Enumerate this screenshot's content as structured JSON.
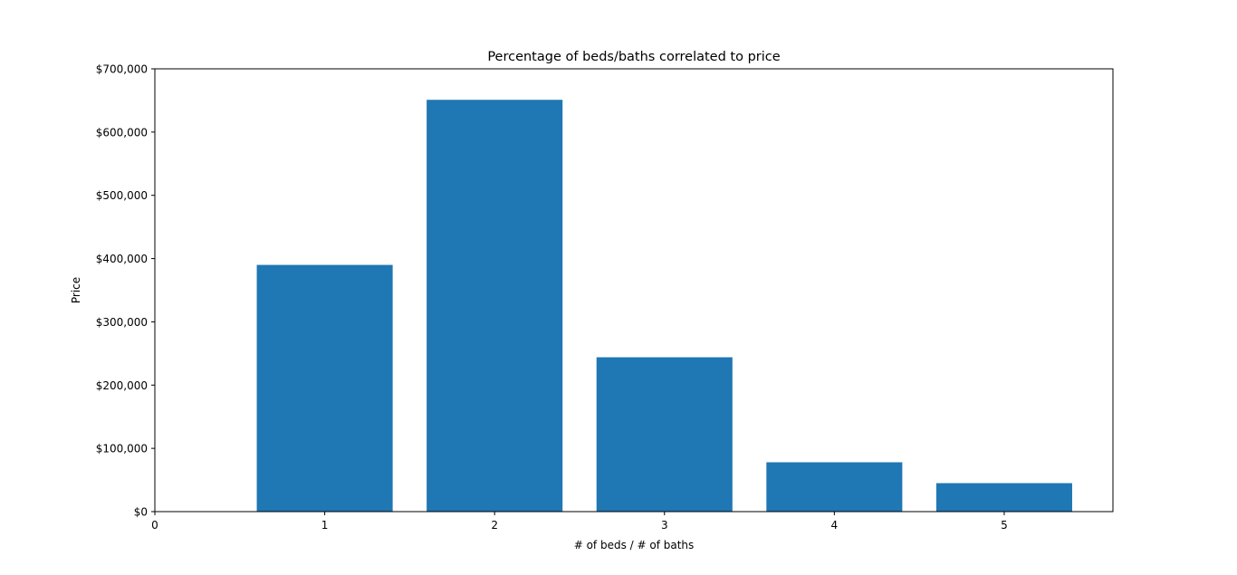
{
  "chart_data": {
    "type": "bar",
    "title": "Percentage of beds/baths correlated to price",
    "xlabel": "# of beds / # of baths",
    "ylabel": "Price",
    "categories": [
      1,
      2,
      3,
      4,
      5
    ],
    "values": [
      390000,
      651000,
      244000,
      78000,
      45000
    ],
    "xlim": [
      0,
      5.64
    ],
    "ylim": [
      0,
      700000
    ],
    "x_ticks": [
      0,
      1,
      2,
      3,
      4,
      5
    ],
    "x_tick_labels": [
      "0",
      "1",
      "2",
      "3",
      "4",
      "5"
    ],
    "y_ticks": [
      0,
      100000,
      200000,
      300000,
      400000,
      500000,
      600000,
      700000
    ],
    "y_tick_labels": [
      "$0",
      "$100,000",
      "$200,000",
      "$300,000",
      "$400,000",
      "$500,000",
      "$600,000",
      "$700,000"
    ],
    "bar_width": 0.8,
    "bar_color": "#1f77b4",
    "grid": false,
    "legend": "none"
  }
}
